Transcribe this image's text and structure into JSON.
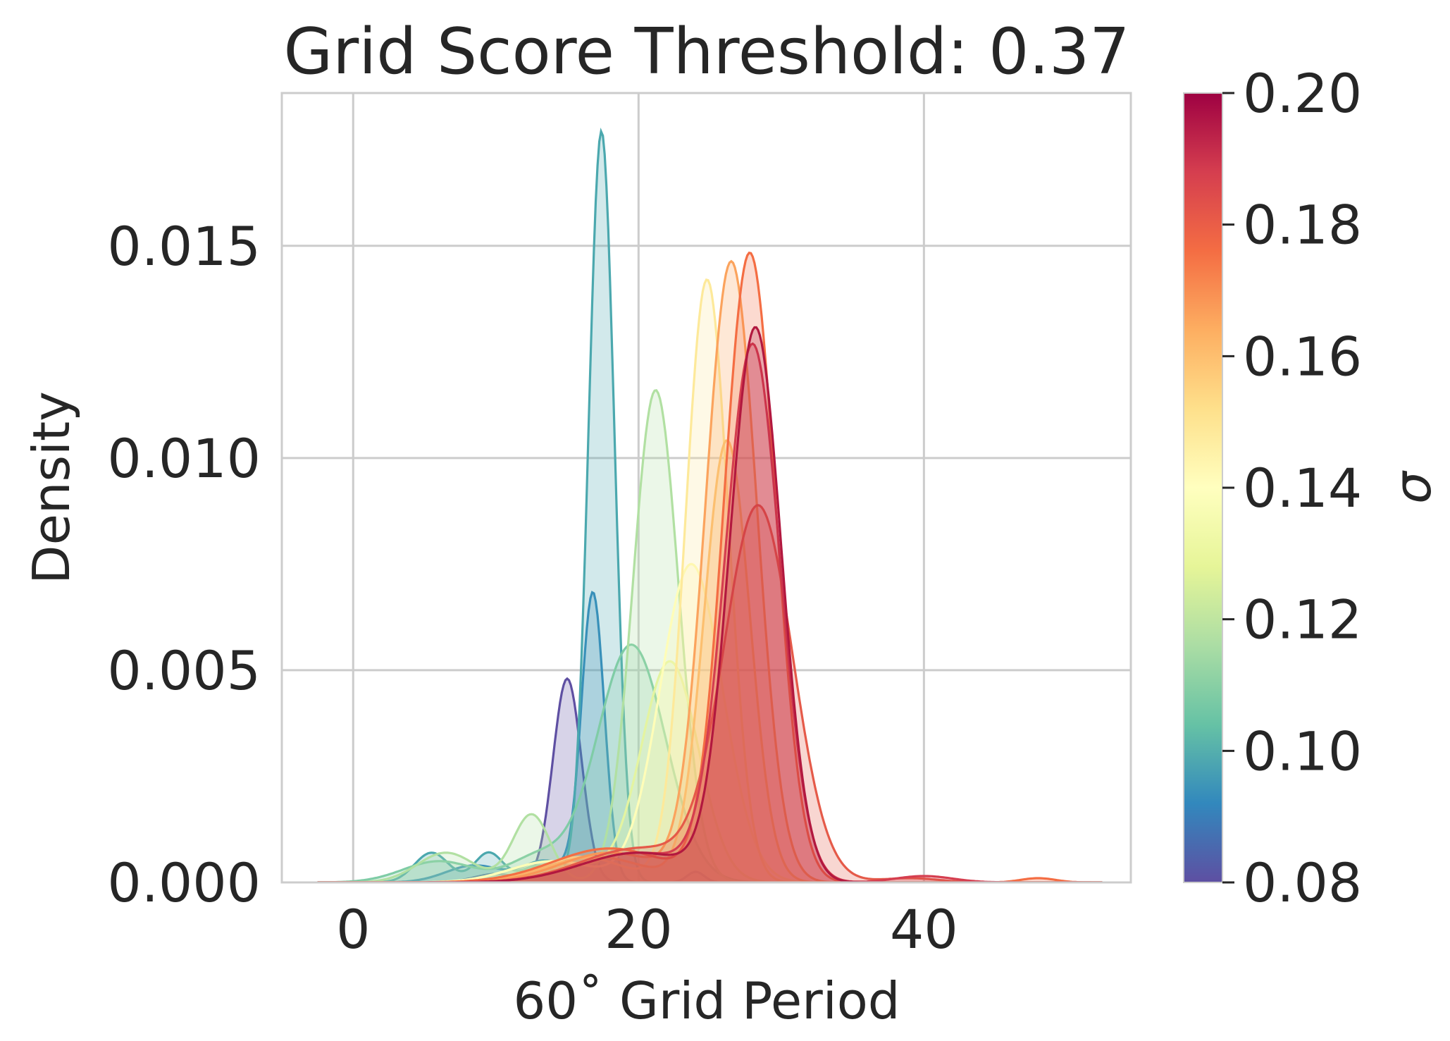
{
  "chart_data": {
    "type": "area",
    "title": "Grid Score Threshold: 0.37",
    "xlabel": "60˚ Grid Period",
    "ylabel": "Density",
    "xlim": [
      -5,
      54.5
    ],
    "ylim": [
      0,
      0.0186
    ],
    "xticks": [
      0,
      20,
      40
    ],
    "xtick_labels": [
      "0",
      "20",
      "40"
    ],
    "yticks": [
      0.0,
      0.005,
      0.01,
      0.015
    ],
    "ytick_labels": [
      "0.000",
      "0.005",
      "0.010",
      "0.015"
    ],
    "grid": true,
    "colorbar": {
      "label": "σ",
      "colormap": "Spectral_r",
      "range": [
        0.08,
        0.2
      ],
      "ticks": [
        0.08,
        0.1,
        0.12,
        0.14,
        0.16,
        0.18,
        0.2
      ],
      "tick_labels": [
        "0.08",
        "0.10",
        "0.12",
        "0.14",
        "0.16",
        "0.18",
        "0.20"
      ],
      "stops": [
        "#5e4fa2",
        "#3288bd",
        "#66c2a5",
        "#abdda4",
        "#e6f598",
        "#ffffbf",
        "#fee08b",
        "#fdae61",
        "#f46d43",
        "#d53e4f",
        "#9e0142"
      ]
    },
    "series": [
      {
        "name": "sigma=0.085",
        "color": "#5e4fa2",
        "components": [
          {
            "mu": 15.0,
            "sd": 1.0,
            "amp": 0.0048
          },
          {
            "mu": 10.0,
            "sd": 1.5,
            "amp": 0.0002
          },
          {
            "mu": 24.0,
            "sd": 0.6,
            "amp": 0.00025
          }
        ]
      },
      {
        "name": "sigma=0.093",
        "color": "#3288bd",
        "components": [
          {
            "mu": 16.8,
            "sd": 0.8,
            "amp": 0.0068
          },
          {
            "mu": 8.5,
            "sd": 2.0,
            "amp": 0.0004
          },
          {
            "mu": 13.5,
            "sd": 1.5,
            "amp": 0.0005
          }
        ]
      },
      {
        "name": "sigma=0.100",
        "color": "#4ba8ae",
        "components": [
          {
            "mu": 17.4,
            "sd": 0.9,
            "amp": 0.0177
          },
          {
            "mu": 5.5,
            "sd": 1.2,
            "amp": 0.0007
          },
          {
            "mu": 9.5,
            "sd": 1.0,
            "amp": 0.0007
          },
          {
            "mu": 13.0,
            "sd": 1.2,
            "amp": 0.0004
          }
        ]
      },
      {
        "name": "sigma=0.108",
        "color": "#7fcca6",
        "components": [
          {
            "mu": 19.5,
            "sd": 2.4,
            "amp": 0.0056
          },
          {
            "mu": 6.0,
            "sd": 2.5,
            "amp": 0.0005
          },
          {
            "mu": 13.0,
            "sd": 2.0,
            "amp": 0.0006
          }
        ]
      },
      {
        "name": "sigma=0.115",
        "color": "#b1e0a2",
        "components": [
          {
            "mu": 21.2,
            "sd": 1.6,
            "amp": 0.0116
          },
          {
            "mu": 12.5,
            "sd": 1.3,
            "amp": 0.0016
          },
          {
            "mu": 6.5,
            "sd": 2.0,
            "amp": 0.0007
          }
        ]
      },
      {
        "name": "sigma=0.125",
        "color": "#e4f4a0",
        "components": [
          {
            "mu": 22.2,
            "sd": 2.0,
            "amp": 0.0052
          },
          {
            "mu": 14.0,
            "sd": 3.0,
            "amp": 0.0005
          }
        ]
      },
      {
        "name": "sigma=0.140",
        "color": "#fffdb8",
        "components": [
          {
            "mu": 23.7,
            "sd": 2.2,
            "amp": 0.0075
          },
          {
            "mu": 14.0,
            "sd": 3.0,
            "amp": 0.0005
          }
        ]
      },
      {
        "name": "sigma=0.150",
        "color": "#fde99a",
        "components": [
          {
            "mu": 24.8,
            "sd": 1.5,
            "amp": 0.0142
          },
          {
            "mu": 16.0,
            "sd": 3.0,
            "amp": 0.0006
          }
        ]
      },
      {
        "name": "sigma=0.158",
        "color": "#fdc876",
        "components": [
          {
            "mu": 26.2,
            "sd": 1.6,
            "amp": 0.0104
          },
          {
            "mu": 17.0,
            "sd": 3.5,
            "amp": 0.0006
          }
        ]
      },
      {
        "name": "sigma=0.167",
        "color": "#fba35d",
        "components": [
          {
            "mu": 26.5,
            "sd": 1.8,
            "amp": 0.0146
          },
          {
            "mu": 18.0,
            "sd": 3.5,
            "amp": 0.0007
          }
        ]
      },
      {
        "name": "sigma=0.177",
        "color": "#f46d43",
        "components": [
          {
            "mu": 27.8,
            "sd": 1.8,
            "amp": 0.0148
          },
          {
            "mu": 18.0,
            "sd": 4.0,
            "amp": 0.0008
          },
          {
            "mu": 48.0,
            "sd": 1.2,
            "amp": 0.0001
          }
        ]
      },
      {
        "name": "sigma=0.185",
        "color": "#e55a49",
        "components": [
          {
            "mu": 28.4,
            "sd": 2.4,
            "amp": 0.0088
          },
          {
            "mu": 20.0,
            "sd": 4.0,
            "amp": 0.0008
          },
          {
            "mu": 39.0,
            "sd": 2.0,
            "amp": 0.0001
          }
        ]
      },
      {
        "name": "sigma=0.192",
        "color": "#d53e4f",
        "components": [
          {
            "mu": 28.0,
            "sd": 1.9,
            "amp": 0.0126
          },
          {
            "mu": 20.0,
            "sd": 4.0,
            "amp": 0.0007
          },
          {
            "mu": 40.0,
            "sd": 2.0,
            "amp": 0.00015
          }
        ]
      },
      {
        "name": "sigma=0.198",
        "color": "#b2183f",
        "components": [
          {
            "mu": 28.2,
            "sd": 1.8,
            "amp": 0.013
          },
          {
            "mu": 20.0,
            "sd": 4.0,
            "amp": 0.0007
          }
        ]
      }
    ]
  }
}
